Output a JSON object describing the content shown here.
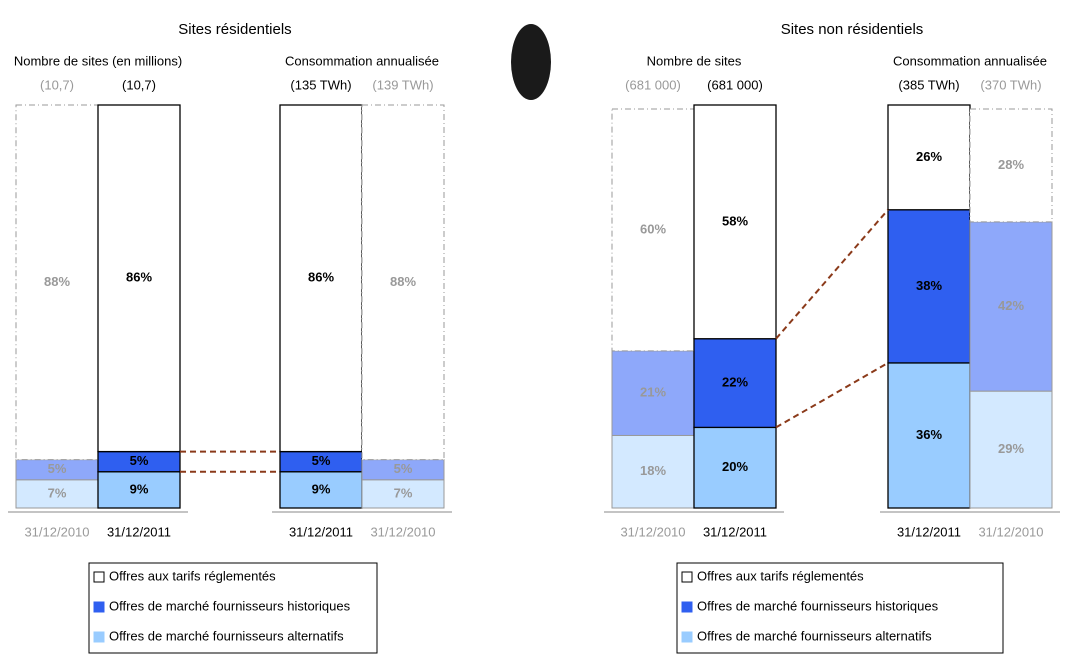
{
  "chart_data": [
    {
      "type": "stacked_bar",
      "title": "Sites résidentiels",
      "ylim": [
        0,
        100
      ],
      "series": [
        {
          "name": "Offres aux tarifs réglementés",
          "color": "#ffffff"
        },
        {
          "name": "Offres de marché fournisseurs historiques",
          "color": "#2f5ff0"
        },
        {
          "name": "Offres de marché fournisseurs alternatifs",
          "color": "#99ccff"
        }
      ],
      "groups": [
        {
          "subtitle": "Nombre de sites (en millions)",
          "categories": [
            "31/12/2010",
            "31/12/2011"
          ],
          "emphasis": [
            "light",
            "bold"
          ],
          "totals": [
            "(10,7)",
            "(10,7)"
          ],
          "values": [
            [
              88,
              86
            ],
            [
              5,
              5
            ],
            [
              7,
              9
            ]
          ],
          "value_labels": [
            [
              "88%",
              "86%"
            ],
            [
              "5%",
              "5%"
            ],
            [
              "7%",
              "9%"
            ]
          ]
        },
        {
          "subtitle": "Consommation annualisée",
          "categories": [
            "31/12/2011",
            "31/12/2010"
          ],
          "emphasis": [
            "bold",
            "light"
          ],
          "totals": [
            "(135 TWh)",
            "(139 TWh)"
          ],
          "values": [
            [
              86,
              88
            ],
            [
              5,
              5
            ],
            [
              9,
              7
            ]
          ],
          "value_labels": [
            [
              "86%",
              "88%"
            ],
            [
              "5%",
              "5%"
            ],
            [
              "9%",
              "7%"
            ]
          ]
        }
      ]
    },
    {
      "type": "stacked_bar",
      "title": "Sites non résidentiels",
      "ylim": [
        0,
        100
      ],
      "series": [
        {
          "name": "Offres aux tarifs réglementés",
          "color": "#ffffff"
        },
        {
          "name": "Offres de marché fournisseurs historiques",
          "color": "#2f5ff0"
        },
        {
          "name": "Offres de marché fournisseurs alternatifs",
          "color": "#99ccff"
        }
      ],
      "groups": [
        {
          "subtitle": "Nombre de sites",
          "categories": [
            "31/12/2010",
            "31/12/2011"
          ],
          "emphasis": [
            "light",
            "bold"
          ],
          "totals": [
            "(681 000)",
            "(681 000)"
          ],
          "values": [
            [
              60,
              58
            ],
            [
              21,
              22
            ],
            [
              18,
              20
            ]
          ],
          "value_labels": [
            [
              "60%",
              "58%"
            ],
            [
              "21%",
              "22%"
            ],
            [
              "18%",
              "20%"
            ]
          ]
        },
        {
          "subtitle": "Consommation annualisée",
          "categories": [
            "31/12/2011",
            "31/12/2010"
          ],
          "emphasis": [
            "bold",
            "light"
          ],
          "totals": [
            "(385 TWh)",
            "(370 TWh)"
          ],
          "values": [
            [
              26,
              28
            ],
            [
              38,
              42
            ],
            [
              36,
              29
            ]
          ],
          "value_labels": [
            [
              "26%",
              "28%"
            ],
            [
              "38%",
              "42%"
            ],
            [
              "36%",
              "29%"
            ]
          ]
        }
      ]
    }
  ]
}
